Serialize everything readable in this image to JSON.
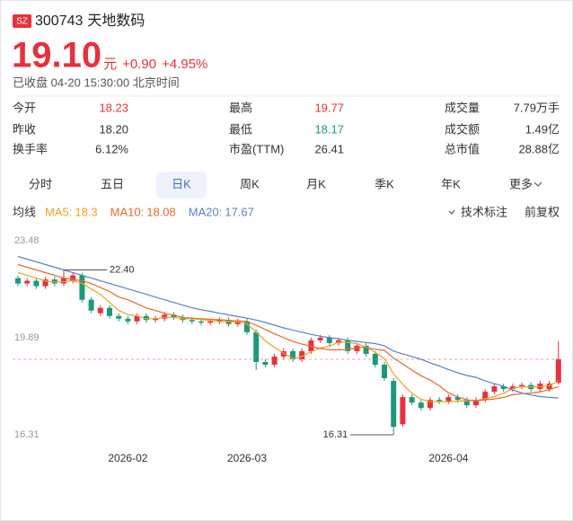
{
  "header": {
    "exchange": "SZ",
    "code": "300743",
    "name": "天地数码",
    "price": "19.10",
    "unit": "元",
    "change": "+0.90",
    "change_percent": "+4.95%",
    "status": "已收盘 04-20 15:30:00 北京时间"
  },
  "stats": [
    [
      {
        "label": "今开",
        "value": "18.23",
        "color": "#e5323e"
      },
      {
        "label": "最高",
        "value": "19.77",
        "color": "#e5323e"
      },
      {
        "label": "成交量",
        "value": "7.79万手"
      }
    ],
    [
      {
        "label": "昨收",
        "value": "18.20"
      },
      {
        "label": "最低",
        "value": "18.17",
        "color": "#1a9a7a"
      },
      {
        "label": "成交额",
        "value": "1.49亿"
      }
    ],
    [
      {
        "label": "换手率",
        "value": "6.12%"
      },
      {
        "label": "市盈(TTM)",
        "value": "26.41"
      },
      {
        "label": "总市值",
        "value": "28.88亿"
      }
    ]
  ],
  "tabs": [
    "分时",
    "五日",
    "日K",
    "周K",
    "月K",
    "季K",
    "年K",
    "更多"
  ],
  "active_tab": 2,
  "toolbar": {
    "ma_label": "均线",
    "tech": "技术标注",
    "adjust": "前复权"
  },
  "chart_data": {
    "type": "candlestick",
    "categories": [
      null,
      null,
      null,
      null,
      null,
      null,
      null,
      null,
      null,
      null,
      null,
      null,
      "2026-02",
      null,
      null,
      null,
      null,
      null,
      null,
      null,
      null,
      null,
      null,
      null,
      null,
      "2026-03",
      null,
      null,
      null,
      null,
      null,
      null,
      null,
      null,
      null,
      null,
      null,
      null,
      null,
      null,
      null,
      null,
      null,
      null,
      null,
      null,
      null,
      "2026-04",
      null,
      null,
      null,
      null,
      null,
      null,
      null,
      null,
      null,
      null,
      null,
      null
    ],
    "open": [
      22.1,
      21.9,
      22.0,
      21.8,
      22.05,
      21.9,
      22.0,
      22.2,
      21.3,
      20.8,
      21.0,
      20.7,
      20.6,
      20.5,
      20.7,
      20.55,
      20.6,
      20.75,
      20.65,
      20.55,
      20.5,
      20.45,
      20.5,
      20.55,
      20.4,
      20.5,
      20.1,
      19.0,
      18.9,
      19.2,
      19.4,
      19.1,
      19.4,
      19.8,
      19.9,
      19.7,
      19.8,
      19.4,
      19.6,
      19.3,
      18.9,
      18.3,
      16.7,
      17.7,
      17.5,
      17.3,
      17.6,
      17.55,
      17.7,
      17.6,
      17.4,
      17.6,
      17.9,
      18.1,
      18.0,
      18.1,
      18.15,
      18.0,
      18.0,
      18.23
    ],
    "close": [
      21.9,
      22.0,
      21.8,
      22.05,
      21.9,
      22.1,
      22.2,
      21.3,
      20.9,
      21.0,
      20.7,
      20.6,
      20.5,
      20.7,
      20.55,
      20.6,
      20.75,
      20.65,
      20.55,
      20.5,
      20.45,
      20.5,
      20.55,
      20.4,
      20.5,
      20.1,
      19.0,
      18.9,
      19.2,
      19.4,
      19.1,
      19.4,
      19.8,
      19.9,
      19.7,
      19.8,
      19.4,
      19.6,
      19.3,
      18.9,
      18.4,
      16.6,
      17.7,
      17.5,
      17.3,
      17.6,
      17.55,
      17.7,
      17.6,
      17.4,
      17.6,
      17.9,
      18.1,
      18.0,
      18.1,
      18.15,
      18.0,
      18.2,
      18.2,
      19.1
    ],
    "high": [
      22.2,
      22.1,
      22.1,
      22.15,
      22.15,
      22.4,
      22.3,
      22.3,
      21.4,
      21.1,
      21.1,
      20.8,
      20.7,
      20.8,
      20.8,
      20.7,
      20.85,
      20.85,
      20.75,
      20.65,
      20.6,
      20.6,
      20.65,
      20.65,
      20.6,
      20.6,
      20.2,
      19.1,
      19.3,
      19.5,
      19.5,
      19.5,
      19.9,
      20.0,
      20.0,
      19.9,
      19.9,
      19.7,
      19.7,
      19.4,
      19.0,
      18.4,
      17.8,
      17.8,
      17.6,
      17.7,
      17.7,
      17.8,
      17.8,
      17.7,
      17.7,
      18.0,
      18.2,
      18.2,
      18.2,
      18.25,
      18.25,
      18.3,
      18.3,
      19.77
    ],
    "low": [
      21.8,
      21.8,
      21.7,
      21.7,
      21.8,
      21.8,
      21.9,
      21.2,
      20.8,
      20.7,
      20.6,
      20.5,
      20.4,
      20.4,
      20.45,
      20.45,
      20.5,
      20.55,
      20.45,
      20.4,
      20.35,
      20.35,
      20.4,
      20.3,
      20.3,
      20.0,
      18.7,
      18.8,
      18.8,
      19.1,
      19.0,
      19.0,
      19.3,
      19.7,
      19.6,
      19.6,
      19.3,
      19.3,
      19.2,
      18.8,
      18.3,
      16.31,
      16.6,
      17.4,
      17.2,
      17.2,
      17.45,
      17.45,
      17.5,
      17.3,
      17.3,
      17.5,
      17.8,
      17.9,
      17.9,
      18.0,
      17.9,
      17.9,
      17.9,
      18.17
    ],
    "up_color": "#e5323e",
    "down_color": "#1a9a7a",
    "ylim": [
      16.31,
      23.48
    ],
    "yticks": [
      23.48,
      19.89,
      16.31
    ],
    "grid": false,
    "high_label": "22.40",
    "low_label": "16.31",
    "series": [
      {
        "name": "MA5:",
        "color": "#f0a020",
        "values": [
          22.3,
          22.2,
          22.1,
          22.0,
          21.95,
          21.97,
          22.0,
          21.9,
          21.7,
          21.5,
          21.2,
          20.9,
          20.75,
          20.7,
          20.6,
          20.6,
          20.65,
          20.65,
          20.6,
          20.6,
          20.57,
          20.53,
          20.5,
          20.48,
          20.48,
          20.41,
          20.11,
          19.78,
          19.54,
          19.32,
          19.12,
          19.2,
          19.38,
          19.52,
          19.58,
          19.74,
          19.72,
          19.68,
          19.56,
          19.36,
          19.12,
          18.56,
          18.18,
          17.84,
          17.62,
          17.54,
          17.53,
          17.53,
          17.55,
          17.57,
          17.57,
          17.64,
          17.72,
          17.84,
          18.02,
          18.09,
          18.07,
          18.09,
          18.13,
          18.3
        ]
      },
      {
        "name": "MA10:",
        "color": "#e8692c",
        "values": [
          22.6,
          22.5,
          22.4,
          22.3,
          22.2,
          22.1,
          22.05,
          22.0,
          21.9,
          21.75,
          21.6,
          21.4,
          21.3,
          21.15,
          21.0,
          20.9,
          20.8,
          20.72,
          20.65,
          20.62,
          20.6,
          20.58,
          20.56,
          20.54,
          20.52,
          20.5,
          20.36,
          20.2,
          20.04,
          19.9,
          19.76,
          19.66,
          19.58,
          19.5,
          19.45,
          19.45,
          19.46,
          19.53,
          19.54,
          19.47,
          19.43,
          19.14,
          18.93,
          18.7,
          18.49,
          18.33,
          18.12,
          17.86,
          17.71,
          17.6,
          17.56,
          17.6,
          17.63,
          17.69,
          17.79,
          17.83,
          17.85,
          17.9,
          17.98,
          18.08
        ]
      },
      {
        "name": "MA20:",
        "color": "#5b7fcf",
        "values": [
          22.9,
          22.8,
          22.7,
          22.6,
          22.5,
          22.4,
          22.3,
          22.2,
          22.1,
          22.0,
          21.9,
          21.8,
          21.7,
          21.6,
          21.5,
          21.4,
          21.3,
          21.2,
          21.1,
          21.0,
          20.93,
          20.87,
          20.8,
          20.74,
          20.68,
          20.62,
          20.55,
          20.46,
          20.36,
          20.26,
          20.18,
          20.1,
          20.02,
          19.95,
          19.9,
          19.86,
          19.8,
          19.76,
          19.72,
          19.68,
          19.6,
          19.4,
          19.3,
          19.2,
          19.1,
          18.97,
          18.85,
          18.72,
          18.6,
          18.5,
          18.43,
          18.3,
          18.2,
          18.1,
          17.97,
          17.85,
          17.78,
          17.72,
          17.69,
          17.67
        ]
      }
    ]
  }
}
